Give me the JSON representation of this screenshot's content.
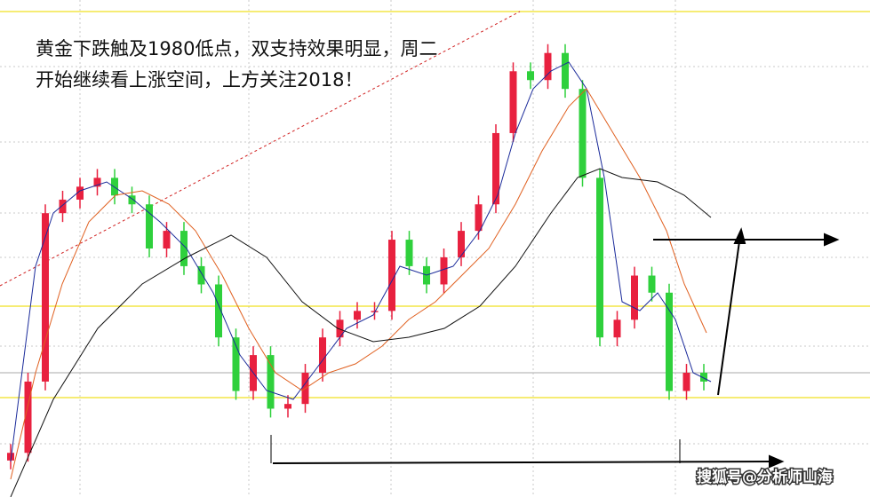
{
  "chart_data": {
    "type": "candlestick",
    "annotations": [
      "黄金下跌触及1980低点，双支持效果明显，周二",
      "开始继续看上涨空间，上方关注2018！"
    ],
    "watermark": "搜狐号@分析师山海",
    "ylim": [
      1974.3,
      2058.7
    ],
    "up_color": "#e8213f",
    "down_color": "#2fd03c",
    "open": [
      1980.5,
      1981.8,
      1993.9,
      2022.5,
      2024.8,
      2027.0,
      2028.5,
      2025.5,
      2024.0,
      2016.5,
      2019.5,
      2013.5,
      2010.4,
      2001.4,
      1992.3,
      1998.4,
      1989.3,
      1990.1,
      1995.4,
      2001.4,
      2004.4,
      2005.9,
      2005.9,
      2018.0,
      2013.5,
      2010.4,
      2015.0,
      2019.5,
      2024.0,
      2036.1,
      2046.6,
      2045.1,
      2049.7,
      2043.6,
      2028.5,
      2001.4,
      2004.4,
      2011.9,
      2009.0,
      1992.3,
      1995.4
    ],
    "close": [
      1981.8,
      1993.9,
      2022.5,
      2024.8,
      2027.0,
      2028.5,
      2025.5,
      2024.0,
      2016.5,
      2019.5,
      2013.5,
      2010.4,
      2001.4,
      1992.3,
      1998.4,
      1989.3,
      1990.1,
      1995.4,
      2001.4,
      2004.4,
      2005.9,
      2005.9,
      2018.0,
      2013.5,
      2010.4,
      2015.0,
      2019.5,
      2024.0,
      2036.1,
      2046.6,
      2045.1,
      2049.7,
      2043.6,
      2028.5,
      2001.4,
      2004.4,
      2011.9,
      2009.0,
      1992.3,
      1995.4,
      1993.9
    ],
    "high": [
      1983.3,
      1995.4,
      2024.0,
      2026.3,
      2028.5,
      2030.0,
      2030.0,
      2027.0,
      2025.5,
      2021.0,
      2021.0,
      2015.0,
      2011.9,
      2002.9,
      1999.9,
      1999.9,
      1991.6,
      1996.9,
      2002.9,
      2005.9,
      2007.4,
      2007.4,
      2019.5,
      2019.5,
      2015.0,
      2016.5,
      2021.0,
      2025.5,
      2037.6,
      2048.1,
      2048.1,
      2051.2,
      2051.2,
      2045.1,
      2030.0,
      2005.9,
      2013.4,
      2013.4,
      2010.5,
      1996.9,
      1996.9
    ],
    "low": [
      1979.0,
      1980.3,
      1992.4,
      2021.0,
      2023.3,
      2025.5,
      2024.0,
      2022.5,
      2015.0,
      2015.0,
      2012.0,
      2008.9,
      1999.9,
      1990.8,
      1990.8,
      1987.8,
      1987.8,
      1988.6,
      1993.9,
      1999.9,
      2002.9,
      2004.4,
      2004.4,
      2012.0,
      2008.9,
      2008.9,
      2013.5,
      2018.0,
      2022.5,
      2034.6,
      2043.6,
      2043.6,
      2042.1,
      2027.0,
      1999.9,
      1999.9,
      2002.9,
      2007.5,
      1990.8,
      1990.8,
      1992.4
    ]
  }
}
